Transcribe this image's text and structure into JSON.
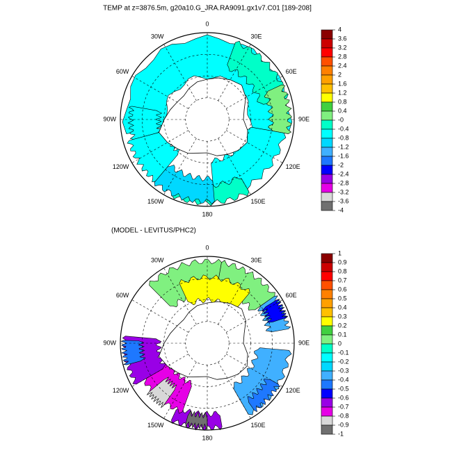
{
  "panels": [
    {
      "title": "TEMP at z=3876.5m, g20a10.G_JRA.RA9091.gx1v7.C01 [189-208]",
      "colorbar": {
        "levels": [
          4,
          3.6,
          3.2,
          2.8,
          2.4,
          2,
          1.6,
          1.2,
          0.8,
          0.4,
          {
            "value": 0,
            "label": "-0"
          },
          -0.4,
          -0.8,
          -1.2,
          -1.6,
          -2,
          -2.4,
          -2.8,
          -3.2,
          -3.6,
          -4
        ],
        "colors": [
          "#8b0000",
          "#cc0000",
          "#ff0000",
          "#ff5000",
          "#ff8000",
          "#ffa000",
          "#ffc000",
          "#ffff00",
          "#40d040",
          "#80f080",
          "#00ffc8",
          "#00ffff",
          "#00d8ff",
          "#40b0ff",
          "#1e78ff",
          "#0000ff",
          "#9900e6",
          "#e600e6",
          "#d8d8d8",
          "#707070"
        ]
      }
    },
    {
      "title": "(MODEL - LEVITUS/PHC2)",
      "colorbar": {
        "levels": [
          1,
          0.9,
          0.8,
          0.7,
          0.6,
          0.5,
          0.4,
          0.3,
          0.2,
          0.1,
          0,
          -0.1,
          -0.2,
          -0.3,
          -0.4,
          -0.5,
          -0.6,
          -0.7,
          -0.8,
          -0.9,
          -1
        ],
        "colors": [
          "#8b0000",
          "#cc0000",
          "#ff0000",
          "#ff5000",
          "#ff8000",
          "#ffa000",
          "#ffc000",
          "#ffff00",
          "#40d040",
          "#80f080",
          "#00ffc8",
          "#00ffff",
          "#00d8ff",
          "#40b0ff",
          "#1e78ff",
          "#0000ff",
          "#9900e6",
          "#e600e6",
          "#d8d8d8",
          "#707070"
        ]
      }
    }
  ],
  "longitude_labels": [
    "0",
    "30E",
    "60E",
    "90E",
    "120E",
    "150E",
    "180",
    "150W",
    "120W",
    "90W",
    "60W",
    "30W"
  ]
}
